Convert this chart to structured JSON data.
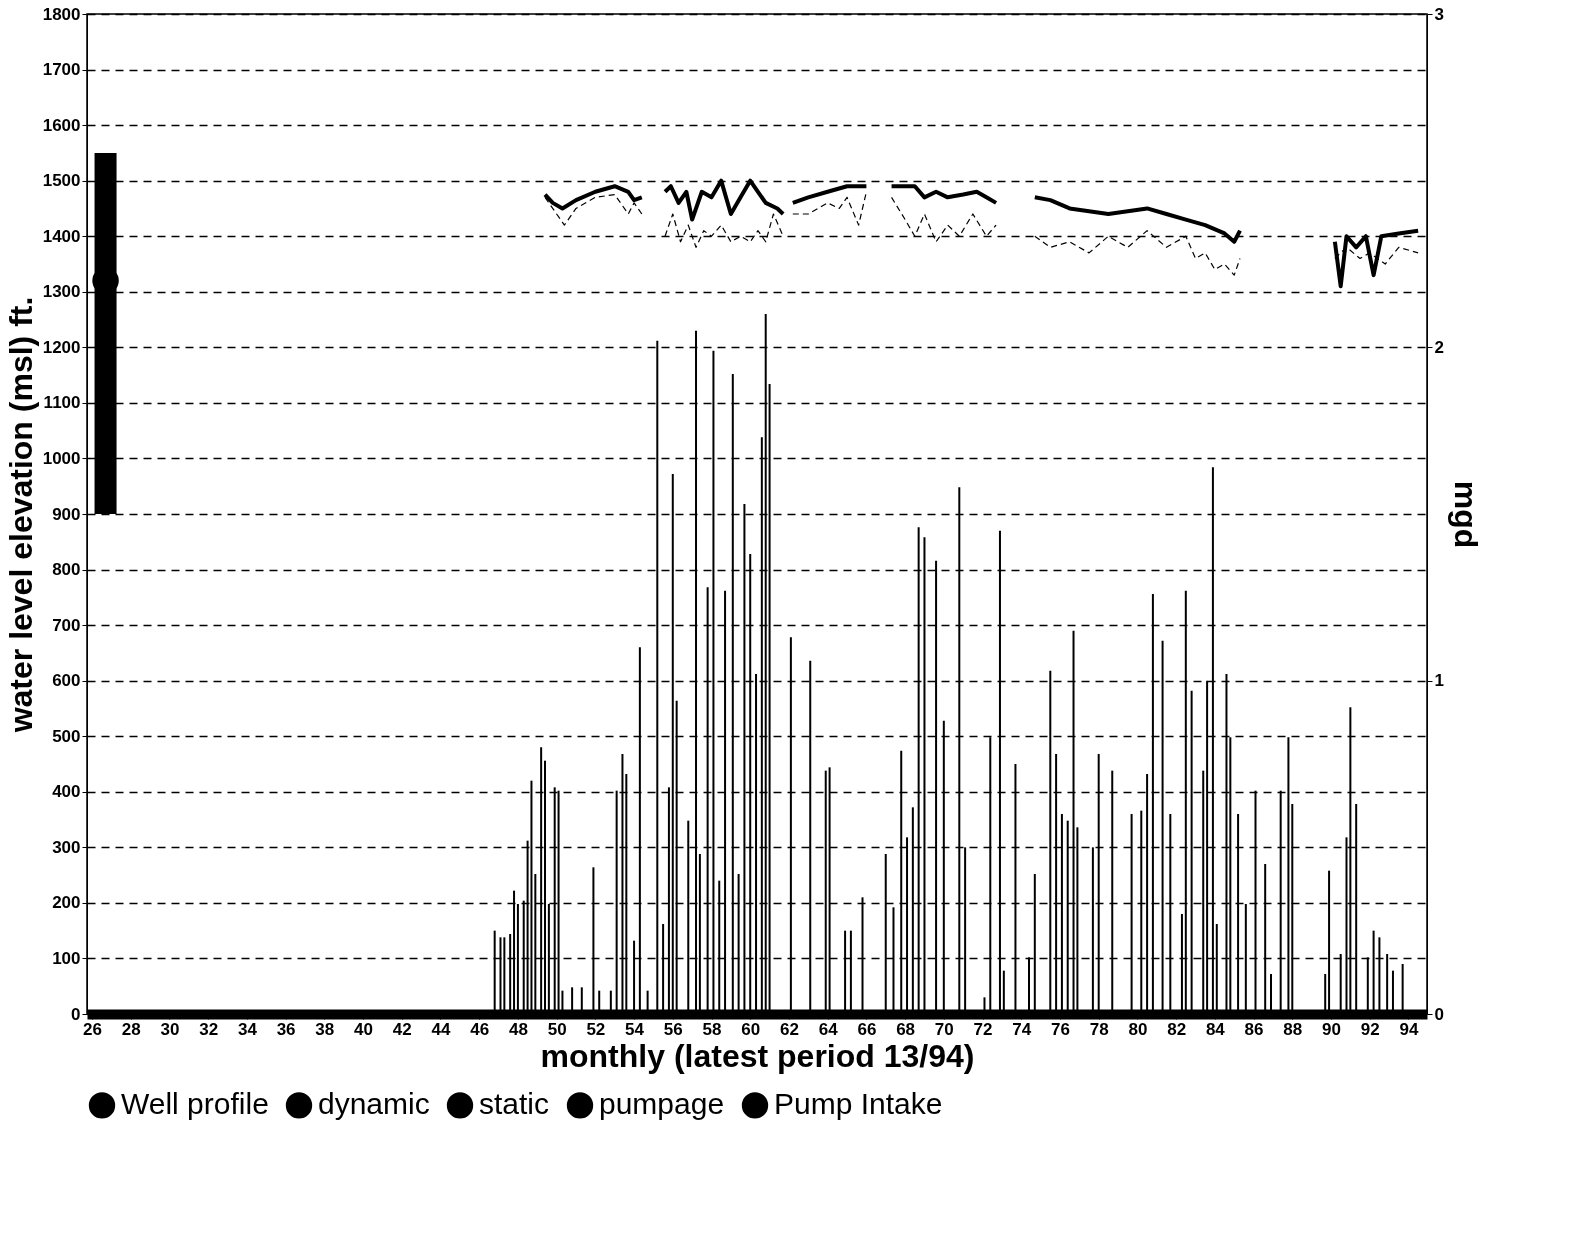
{
  "chart_data": {
    "type": "bar",
    "xlabel": "monthly (latest period 13/94)",
    "ylabel": "water level elevation (msl) ft.",
    "y2label": "mgd",
    "xlim": [
      26,
      94.7
    ],
    "xticks": [
      26,
      28,
      30,
      32,
      34,
      36,
      38,
      40,
      42,
      44,
      46,
      48,
      50,
      52,
      54,
      56,
      58,
      60,
      62,
      64,
      66,
      68,
      70,
      72,
      74,
      76,
      78,
      80,
      82,
      84,
      86,
      88,
      90,
      92,
      94
    ],
    "ylim": [
      0,
      1800
    ],
    "yticks": [
      0,
      100,
      200,
      300,
      400,
      500,
      600,
      700,
      800,
      900,
      1000,
      1100,
      1200,
      1300,
      1400,
      1500,
      1600,
      1700,
      1800
    ],
    "y2lim": [
      0,
      3
    ],
    "y2ticks": [
      0,
      1,
      2,
      3
    ],
    "grid": "y",
    "legend": "bottom",
    "series": [
      {
        "name": "Well profile",
        "color": "#000000",
        "x": [
          26.7
        ],
        "base": [
          900
        ],
        "values": [
          650
        ]
      },
      {
        "name": "dynamic",
        "type": "line",
        "line_style": "dashed",
        "color": "#000000",
        "x": [
          49.4,
          50.0,
          50.4,
          51.0,
          52.0,
          53.0,
          53.7,
          54.0,
          54.4,
          55.0,
          55.6,
          56.0,
          56.4,
          56.8,
          57.2,
          57.6,
          58.0,
          58.5,
          59.0,
          59.5,
          60.0,
          60.4,
          60.8,
          61.2,
          61.7,
          62.0,
          62.2,
          63.0,
          64.0,
          64.6,
          65.0,
          65.6,
          66.0,
          66.7,
          67.3,
          68.0,
          68.5,
          69.0,
          69.6,
          70.2,
          70.8,
          71.5,
          72.2,
          72.7,
          73.7,
          74.7,
          75.5,
          76.5,
          77.5,
          78.5,
          79.5,
          80.5,
          81.5,
          82.5,
          83.0,
          83.5,
          84.0,
          84.5,
          85.0,
          85.3,
          88.0,
          90.2,
          90.8,
          91.5,
          92.0,
          92.8,
          93.5,
          94.5
        ],
        "values": [
          1470,
          1440,
          1420,
          1450,
          1470,
          1475,
          1440,
          1460,
          1440,
          null,
          1400,
          1440,
          1390,
          1420,
          1380,
          1410,
          1400,
          1420,
          1390,
          1400,
          1390,
          1410,
          1390,
          1440,
          1400,
          null,
          1440,
          1440,
          1460,
          1450,
          1470,
          1420,
          1480,
          null,
          1470,
          1430,
          1400,
          1440,
          1390,
          1420,
          1400,
          1440,
          1400,
          1420,
          null,
          1400,
          1380,
          1390,
          1370,
          1400,
          1380,
          1410,
          1380,
          1400,
          1360,
          1370,
          1340,
          1350,
          1330,
          1360,
          null,
          1360,
          1380,
          1360,
          1370,
          1350,
          1380,
          1370
        ]
      },
      {
        "name": "static",
        "type": "line",
        "line_style": "solid",
        "color": "#000000",
        "x": [
          49.4,
          49.8,
          50.3,
          51.0,
          52.0,
          53.0,
          53.7,
          54.0,
          54.4,
          55.0,
          55.6,
          55.9,
          56.3,
          56.7,
          57.0,
          57.5,
          58.0,
          58.5,
          59.0,
          59.5,
          60.0,
          60.4,
          60.8,
          61.4,
          61.7,
          62.0,
          62.2,
          63.0,
          64.0,
          65.0,
          66.0,
          66.7,
          67.3,
          68.5,
          69.0,
          69.6,
          70.2,
          71.0,
          71.7,
          72.2,
          72.7,
          73.7,
          74.7,
          75.5,
          76.5,
          77.5,
          78.5,
          79.5,
          80.5,
          81.5,
          82.5,
          83.5,
          84.5,
          85.0,
          85.3,
          88.0,
          90.2,
          90.5,
          90.8,
          91.3,
          91.8,
          92.2,
          92.6,
          93.5,
          94.5
        ],
        "values": [
          1475,
          1460,
          1450,
          1465,
          1480,
          1490,
          1480,
          1465,
          1470,
          null,
          1480,
          1490,
          1460,
          1480,
          1430,
          1480,
          1470,
          1500,
          1440,
          1470,
          1500,
          1480,
          1460,
          1450,
          1440,
          null,
          1460,
          1470,
          1480,
          1490,
          1490,
          null,
          1490,
          1490,
          1470,
          1480,
          1470,
          1475,
          1480,
          1470,
          1460,
          null,
          1470,
          1465,
          1450,
          1445,
          1440,
          1445,
          1450,
          1440,
          1430,
          1420,
          1405,
          1390,
          1410,
          null,
          1390,
          1310,
          1400,
          1380,
          1400,
          1330,
          1400,
          1405,
          1410
        ]
      },
      {
        "name": "pumpage",
        "axis": "y2",
        "color": "#000000",
        "x": [
          46.8,
          47.1,
          47.3,
          47.6,
          47.8,
          48.0,
          48.3,
          48.5,
          48.7,
          48.9,
          49.2,
          49.4,
          49.6,
          49.9,
          50.1,
          50.3,
          50.8,
          51.3,
          51.9,
          52.2,
          52.8,
          53.1,
          53.4,
          53.6,
          54.0,
          54.3,
          54.7,
          55.2,
          55.5,
          55.8,
          56.0,
          56.2,
          56.8,
          57.2,
          57.4,
          57.8,
          58.1,
          58.4,
          58.7,
          59.1,
          59.4,
          59.7,
          60.0,
          60.3,
          60.6,
          60.8,
          61.0,
          62.1,
          63.1,
          63.9,
          64.1,
          64.9,
          65.2,
          65.8,
          67.0,
          67.4,
          67.8,
          68.1,
          68.4,
          68.7,
          69.0,
          69.6,
          70.0,
          70.8,
          71.1,
          72.1,
          72.4,
          72.9,
          73.1,
          73.7,
          74.4,
          74.7,
          75.5,
          75.8,
          76.1,
          76.4,
          76.7,
          76.9,
          77.7,
          78.0,
          78.7,
          79.7,
          80.2,
          80.5,
          80.8,
          81.3,
          81.7,
          82.3,
          82.5,
          82.8,
          83.4,
          83.6,
          83.9,
          84.1,
          84.6,
          84.8,
          85.2,
          85.6,
          86.1,
          86.6,
          86.9,
          87.4,
          87.8,
          88.0,
          89.7,
          89.9,
          90.5,
          90.8,
          91.0,
          91.3,
          91.9,
          92.2,
          92.5,
          92.9,
          93.2,
          93.7
        ],
        "values": [
          0.25,
          0.23,
          0.23,
          0.24,
          0.37,
          0.33,
          0.34,
          0.52,
          0.7,
          0.42,
          0.8,
          0.76,
          0.33,
          0.68,
          0.67,
          0.07,
          0.08,
          0.08,
          0.44,
          0.07,
          0.07,
          0.67,
          0.78,
          0.72,
          0.22,
          1.1,
          0.07,
          2.02,
          0.27,
          0.68,
          1.62,
          0.94,
          0.58,
          2.05,
          0.48,
          1.28,
          1.99,
          0.4,
          1.27,
          1.92,
          0.42,
          1.53,
          1.38,
          1.02,
          1.73,
          2.1,
          1.89,
          1.13,
          1.06,
          0.73,
          0.74,
          0.25,
          0.25,
          0.35,
          0.48,
          0.32,
          0.79,
          0.53,
          0.62,
          1.46,
          1.43,
          1.36,
          0.88,
          1.58,
          0.5,
          0.05,
          0.83,
          1.45,
          0.13,
          0.75,
          0.17,
          0.42,
          1.03,
          0.78,
          0.6,
          0.58,
          1.15,
          0.56,
          0.5,
          0.78,
          0.73,
          0.6,
          0.61,
          0.72,
          1.26,
          1.12,
          0.6,
          0.3,
          1.27,
          0.97,
          0.73,
          1.0,
          1.64,
          0.27,
          1.02,
          0.83,
          0.6,
          0.33,
          0.67,
          0.45,
          0.12,
          0.67,
          0.83,
          0.63,
          0.12,
          0.43,
          0.18,
          0.53,
          0.92,
          0.63,
          0.17,
          0.25,
          0.23,
          0.18,
          0.13,
          0.15
        ]
      },
      {
        "name": "Pump Intake",
        "type": "scatter",
        "marker": "circle",
        "color": "#000000",
        "x": [
          26.7
        ],
        "values": [
          1320
        ]
      }
    ]
  }
}
